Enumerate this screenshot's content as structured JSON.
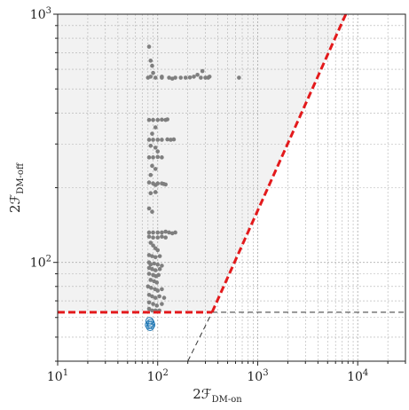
{
  "chart_data": {
    "type": "scatter",
    "title": "",
    "xlabel_main": "2ℱ",
    "xlabel_sub": "DM-on",
    "ylabel_main": "2ℱ",
    "ylabel_sub": "DM-off",
    "x_scale": "log",
    "y_scale": "log",
    "xlim": [
      10,
      30000
    ],
    "ylim": [
      40,
      1000
    ],
    "x_major_ticks": [
      10,
      100,
      1000,
      10000
    ],
    "x_tick_labels": [
      {
        "base": "10",
        "exp": "1"
      },
      {
        "base": "10",
        "exp": "2"
      },
      {
        "base": "10",
        "exp": "3"
      },
      {
        "base": "10",
        "exp": "4"
      }
    ],
    "y_major_ticks": [
      100,
      1000
    ],
    "y_tick_labels": [
      {
        "base": "10",
        "exp": "2"
      },
      {
        "base": "10",
        "exp": "3"
      }
    ],
    "grid": true,
    "thresholds": {
      "x_knee": 350,
      "y_threshold": 63,
      "diagonal_slope_points": [
        [
          350,
          63
        ],
        [
          7600,
          1000
        ]
      ],
      "diagonal_extension_points": [
        [
          200,
          40
        ],
        [
          350,
          63
        ]
      ],
      "shaded_region_color": "#f2f2f2",
      "threshold_color": "#e31a1c",
      "thin_line_color": "#333333"
    },
    "series": [
      {
        "marker": "dot",
        "color": "#7f7f7f",
        "points": [
          [
            82,
            740
          ],
          [
            85,
            650
          ],
          [
            88,
            620
          ],
          [
            90,
            580
          ],
          [
            85,
            560
          ],
          [
            80,
            555
          ],
          [
            95,
            555
          ],
          [
            110,
            555
          ],
          [
            130,
            555
          ],
          [
            150,
            555
          ],
          [
            170,
            555
          ],
          [
            190,
            555
          ],
          [
            210,
            556
          ],
          [
            230,
            560
          ],
          [
            250,
            570
          ],
          [
            270,
            555
          ],
          [
            280,
            590
          ],
          [
            300,
            555
          ],
          [
            320,
            555
          ],
          [
            330,
            560
          ],
          [
            650,
            555
          ],
          [
            110,
            560
          ],
          [
            140,
            550
          ],
          [
            82,
            375
          ],
          [
            90,
            375
          ],
          [
            100,
            375
          ],
          [
            110,
            376
          ],
          [
            120,
            375
          ],
          [
            125,
            377
          ],
          [
            95,
            350
          ],
          [
            88,
            330
          ],
          [
            82,
            312
          ],
          [
            90,
            312
          ],
          [
            100,
            312
          ],
          [
            110,
            312
          ],
          [
            125,
            313
          ],
          [
            135,
            312
          ],
          [
            145,
            313
          ],
          [
            85,
            295
          ],
          [
            95,
            290
          ],
          [
            100,
            280
          ],
          [
            82,
            265
          ],
          [
            90,
            265
          ],
          [
            100,
            266
          ],
          [
            110,
            265
          ],
          [
            88,
            245
          ],
          [
            95,
            238
          ],
          [
            85,
            225
          ],
          [
            82,
            210
          ],
          [
            90,
            208
          ],
          [
            95,
            205
          ],
          [
            100,
            208
          ],
          [
            110,
            208
          ],
          [
            115,
            207
          ],
          [
            120,
            206
          ],
          [
            85,
            190
          ],
          [
            95,
            192
          ],
          [
            82,
            165
          ],
          [
            88,
            160
          ],
          [
            82,
            132
          ],
          [
            90,
            132
          ],
          [
            100,
            132
          ],
          [
            110,
            132
          ],
          [
            120,
            133
          ],
          [
            130,
            132
          ],
          [
            140,
            131
          ],
          [
            150,
            132
          ],
          [
            82,
            127
          ],
          [
            90,
            126
          ],
          [
            100,
            126
          ],
          [
            110,
            127
          ],
          [
            120,
            126
          ],
          [
            85,
            120
          ],
          [
            90,
            117
          ],
          [
            95,
            114
          ],
          [
            100,
            112
          ],
          [
            82,
            107
          ],
          [
            88,
            106
          ],
          [
            95,
            105
          ],
          [
            105,
            106
          ],
          [
            82,
            100
          ],
          [
            85,
            98
          ],
          [
            92,
            99
          ],
          [
            100,
            98
          ],
          [
            110,
            97
          ],
          [
            82,
            95
          ],
          [
            88,
            94
          ],
          [
            95,
            93
          ],
          [
            105,
            94
          ],
          [
            82,
            90
          ],
          [
            90,
            89
          ],
          [
            96,
            88
          ],
          [
            102,
            89
          ],
          [
            85,
            85
          ],
          [
            92,
            84
          ],
          [
            98,
            83
          ],
          [
            80,
            80
          ],
          [
            86,
            79
          ],
          [
            94,
            78
          ],
          [
            100,
            77
          ],
          [
            110,
            78
          ],
          [
            82,
            74
          ],
          [
            88,
            73
          ],
          [
            95,
            72
          ],
          [
            104,
            73
          ],
          [
            116,
            72
          ],
          [
            82,
            69
          ],
          [
            90,
            68
          ],
          [
            98,
            67
          ],
          [
            110,
            68
          ],
          [
            82,
            65
          ],
          [
            88,
            64
          ],
          [
            95,
            64
          ],
          [
            104,
            64
          ]
        ]
      },
      {
        "marker": "ring",
        "color": "#1f77b4",
        "points": [
          [
            83,
            58
          ],
          [
            85,
            57
          ],
          [
            82,
            56
          ],
          [
            86,
            56
          ],
          [
            84,
            55
          ]
        ]
      }
    ]
  }
}
